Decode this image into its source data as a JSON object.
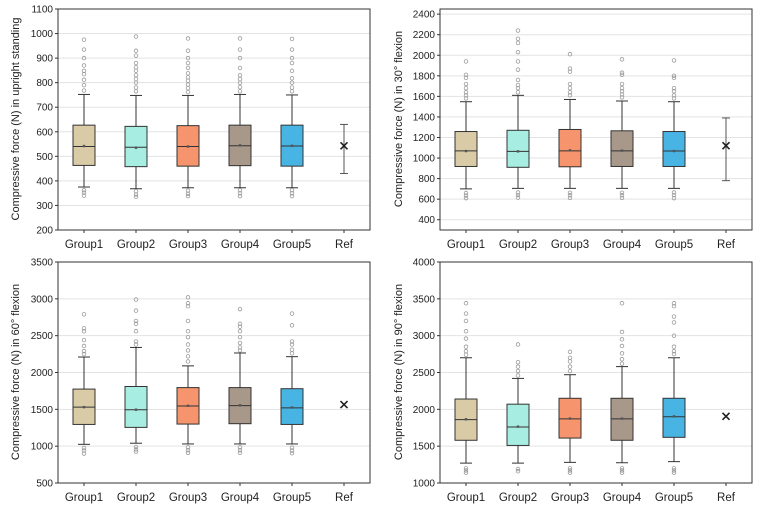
{
  "colors": {
    "group1": "#d9cba6",
    "group2": "#a8ede1",
    "group3": "#f5946d",
    "group4": "#a8988a",
    "group5": "#47b4e4",
    "ref": "#222222",
    "outlier": "#9a9a9a",
    "whisker": "#333333",
    "grid": "#e3e3e3"
  },
  "chart_data": [
    {
      "type": "box",
      "ylabel": "Compressive force (N) in upright standing",
      "categories": [
        "Group1",
        "Group2",
        "Group3",
        "Group4",
        "Group5",
        "Ref"
      ],
      "ylim": [
        200,
        1100
      ],
      "yticks": [
        200,
        300,
        400,
        500,
        600,
        700,
        800,
        900,
        1000,
        1100
      ],
      "grid": true,
      "boxes": [
        {
          "name": "Group1",
          "whisker_low": 375,
          "q1": 463,
          "median": 540,
          "mean": 542,
          "q3": 627,
          "whisker_high": 752,
          "outliers": [
            340,
            352,
            362,
            768,
            790,
            812,
            835,
            848,
            870,
            900,
            935,
            975
          ]
        },
        {
          "name": "Group2",
          "whisker_low": 368,
          "q1": 458,
          "median": 537,
          "mean": 535,
          "q3": 622,
          "whisker_high": 748,
          "outliers": [
            335,
            345,
            358,
            765,
            780,
            800,
            815,
            830,
            848,
            862,
            880,
            910,
            930,
            988
          ]
        },
        {
          "name": "Group3",
          "whisker_low": 372,
          "q1": 460,
          "median": 540,
          "mean": 540,
          "q3": 625,
          "whisker_high": 748,
          "outliers": [
            338,
            348,
            360,
            762,
            778,
            792,
            808,
            822,
            838,
            860,
            880,
            900,
            930,
            980
          ]
        },
        {
          "name": "Group4",
          "whisker_low": 372,
          "q1": 462,
          "median": 543,
          "mean": 545,
          "q3": 627,
          "whisker_high": 752,
          "outliers": [
            338,
            350,
            362,
            765,
            782,
            800,
            815,
            830,
            860,
            900,
            935,
            980
          ]
        },
        {
          "name": "Group5",
          "whisker_low": 372,
          "q1": 460,
          "median": 542,
          "mean": 543,
          "q3": 627,
          "whisker_high": 750,
          "outliers": [
            338,
            350,
            362,
            765,
            780,
            800,
            818,
            848,
            880,
            900,
            935,
            978
          ]
        }
      ],
      "ref": {
        "value": 543,
        "low": 430,
        "high": 630
      }
    },
    {
      "type": "box",
      "ylabel": "Compressive force (N) in 30° flexion",
      "categories": [
        "Group1",
        "Group2",
        "Group3",
        "Group4",
        "Group5",
        "Ref"
      ],
      "ylim": [
        300,
        2450
      ],
      "yticks": [
        400,
        600,
        800,
        1000,
        1200,
        1400,
        1600,
        1800,
        2000,
        2200,
        2400
      ],
      "grid": true,
      "boxes": [
        {
          "name": "Group1",
          "whisker_low": 700,
          "q1": 918,
          "median": 1070,
          "mean": 1068,
          "q3": 1258,
          "whisker_high": 1548,
          "outliers": [
            610,
            635,
            660,
            1580,
            1610,
            1640,
            1680,
            1720,
            1780,
            1810,
            1940
          ]
        },
        {
          "name": "Group2",
          "whisker_low": 705,
          "q1": 910,
          "median": 1065,
          "mean": 1065,
          "q3": 1270,
          "whisker_high": 1610,
          "outliers": [
            615,
            640,
            665,
            1640,
            1680,
            1710,
            1760,
            1860,
            1940,
            2030,
            2120,
            2160,
            2240
          ]
        },
        {
          "name": "Group3",
          "whisker_low": 705,
          "q1": 915,
          "median": 1070,
          "mean": 1075,
          "q3": 1278,
          "whisker_high": 1570,
          "outliers": [
            612,
            638,
            662,
            1610,
            1640,
            1680,
            1720,
            1840,
            1870,
            2010
          ]
        },
        {
          "name": "Group4",
          "whisker_low": 705,
          "q1": 918,
          "median": 1070,
          "mean": 1072,
          "q3": 1265,
          "whisker_high": 1555,
          "outliers": [
            612,
            638,
            662,
            1590,
            1620,
            1650,
            1680,
            1720,
            1810,
            1830,
            1960
          ]
        },
        {
          "name": "Group5",
          "whisker_low": 705,
          "q1": 918,
          "median": 1068,
          "mean": 1068,
          "q3": 1258,
          "whisker_high": 1548,
          "outliers": [
            610,
            640,
            665,
            1580,
            1610,
            1650,
            1680,
            1780,
            1800,
            1950
          ]
        }
      ],
      "ref": {
        "value": 1120,
        "low": 780,
        "high": 1390
      }
    },
    {
      "type": "box",
      "ylabel": "Compressive force (N) in 60° flexion",
      "categories": [
        "Group1",
        "Group2",
        "Group3",
        "Group4",
        "Group5",
        "Ref"
      ],
      "ylim": [
        500,
        3500
      ],
      "yticks": [
        500,
        1000,
        1500,
        2000,
        2500,
        3000,
        3500
      ],
      "grid": true,
      "boxes": [
        {
          "name": "Group1",
          "whisker_low": 1025,
          "q1": 1295,
          "median": 1530,
          "mean": 1530,
          "q3": 1775,
          "whisker_high": 2210,
          "outliers": [
            900,
            940,
            975,
            2250,
            2290,
            2360,
            2440,
            2560,
            2600,
            2790
          ]
        },
        {
          "name": "Group2",
          "whisker_low": 1040,
          "q1": 1255,
          "median": 1495,
          "mean": 1495,
          "q3": 1810,
          "whisker_high": 2340,
          "outliers": [
            925,
            955,
            990,
            2380,
            2420,
            2560,
            2660,
            2700,
            2840,
            2990
          ]
        },
        {
          "name": "Group3",
          "whisker_low": 1030,
          "q1": 1300,
          "median": 1545,
          "mean": 1548,
          "q3": 1795,
          "whisker_high": 2090,
          "outliers": [
            910,
            945,
            985,
            2150,
            2220,
            2300,
            2380,
            2480,
            2560,
            2700,
            2900,
            2940,
            3020
          ]
        },
        {
          "name": "Group4",
          "whisker_low": 1030,
          "q1": 1305,
          "median": 1550,
          "mean": 1555,
          "q3": 1795,
          "whisker_high": 2265,
          "outliers": [
            910,
            945,
            985,
            2300,
            2340,
            2400,
            2480,
            2560,
            2620,
            2660,
            2860
          ]
        },
        {
          "name": "Group5",
          "whisker_low": 1030,
          "q1": 1295,
          "median": 1520,
          "mean": 1525,
          "q3": 1780,
          "whisker_high": 2215,
          "outliers": [
            905,
            940,
            980,
            2260,
            2310,
            2380,
            2420,
            2640,
            2800
          ]
        }
      ],
      "ref": {
        "value": 1565,
        "low": null,
        "high": null
      }
    },
    {
      "type": "box",
      "ylabel": "Compressive force (N) in 90° flexion",
      "categories": [
        "Group1",
        "Group2",
        "Group3",
        "Group4",
        "Group5",
        "Ref"
      ],
      "ylim": [
        1000,
        4000
      ],
      "yticks": [
        1000,
        1500,
        2000,
        2500,
        3000,
        3500,
        4000
      ],
      "grid": true,
      "boxes": [
        {
          "name": "Group1",
          "whisker_low": 1270,
          "q1": 1580,
          "median": 1860,
          "mean": 1865,
          "q3": 2140,
          "whisker_high": 2700,
          "outliers": [
            1140,
            1170,
            1200,
            2740,
            2790,
            2850,
            2960,
            3060,
            3200,
            3300,
            3440
          ]
        },
        {
          "name": "Group2",
          "whisker_low": 1270,
          "q1": 1510,
          "median": 1760,
          "mean": 1765,
          "q3": 2070,
          "whisker_high": 2420,
          "outliers": [
            1160,
            1190,
            2460,
            2520,
            2580,
            2640,
            2880
          ]
        },
        {
          "name": "Group3",
          "whisker_low": 1280,
          "q1": 1610,
          "median": 1870,
          "mean": 1875,
          "q3": 2150,
          "whisker_high": 2470,
          "outliers": [
            1140,
            1170,
            1200,
            2520,
            2580,
            2650,
            2700,
            2780
          ]
        },
        {
          "name": "Group4",
          "whisker_low": 1275,
          "q1": 1580,
          "median": 1870,
          "mean": 1875,
          "q3": 2150,
          "whisker_high": 2580,
          "outliers": [
            1140,
            1170,
            1200,
            2620,
            2680,
            2760,
            2860,
            2950,
            3050,
            3440
          ]
        },
        {
          "name": "Group5",
          "whisker_low": 1290,
          "q1": 1620,
          "median": 1900,
          "mean": 1905,
          "q3": 2150,
          "whisker_high": 2700,
          "outliers": [
            1140,
            1170,
            1200,
            2750,
            2790,
            2850,
            3000,
            3180,
            3260,
            3400,
            3440
          ]
        }
      ],
      "ref": {
        "value": 1905,
        "low": null,
        "high": null
      }
    }
  ]
}
